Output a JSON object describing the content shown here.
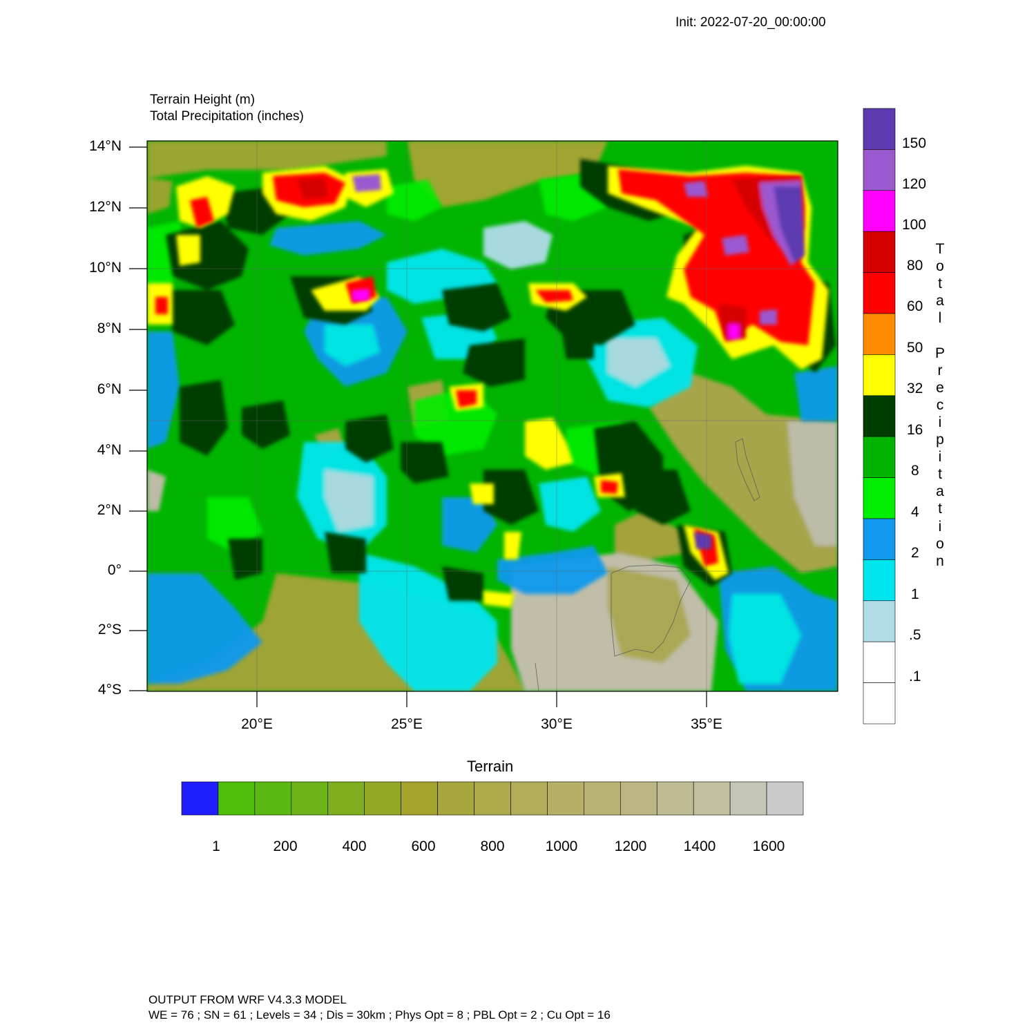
{
  "header": {
    "init_time": "Init: 2022-07-20_00:00:00"
  },
  "titles": {
    "line1": "Terrain Height   (m)",
    "line2": "Total Precipitation (inches)"
  },
  "map": {
    "lat_labels": [
      "14°N",
      "12°N",
      "10°N",
      "8°N",
      "6°N",
      "4°N",
      "2°N",
      "0°",
      "2°S",
      "4°S"
    ],
    "lon_labels": [
      "20°E",
      "25°E",
      "30°E",
      "35°E"
    ]
  },
  "precip_colorbar": {
    "title": "Total Precipitation",
    "labels": [
      "150",
      "120",
      "100",
      "80",
      "60",
      "50",
      "32",
      "16",
      "8",
      "4",
      "2",
      "1",
      ".5",
      ".1"
    ],
    "colors": [
      "#5d3ab0",
      "#9b59d0",
      "#ff00ff",
      "#d60000",
      "#ff0000",
      "#ff8c00",
      "#ffff00",
      "#003d00",
      "#00b400",
      "#00ee00",
      "#1199ee",
      "#00e6f0",
      "#b0dcea",
      "#ffffff",
      "#ffffff"
    ]
  },
  "terrain_colorbar": {
    "title": "Terrain",
    "labels": [
      "1",
      "200",
      "400",
      "600",
      "800",
      "1000",
      "1200",
      "1400",
      "1600"
    ],
    "colors": [
      "#1e1eff",
      "#4dbe0a",
      "#5bb812",
      "#6cb31a",
      "#7fad20",
      "#93a826",
      "#a5a32b",
      "#aaa63e",
      "#aea94b",
      "#b2ad58",
      "#b5b066",
      "#b8b374",
      "#bcb782",
      "#bfbb92",
      "#c3c0a2",
      "#c6c4b4",
      "#cacaca"
    ]
  },
  "footer": {
    "line1": "OUTPUT FROM WRF V4.3.3 MODEL",
    "line2": "WE = 76 ; SN = 61 ; Levels = 34 ; Dis = 30km ; Phys Opt = 8 ; PBL Opt = 2 ; Cu Opt = 16"
  }
}
